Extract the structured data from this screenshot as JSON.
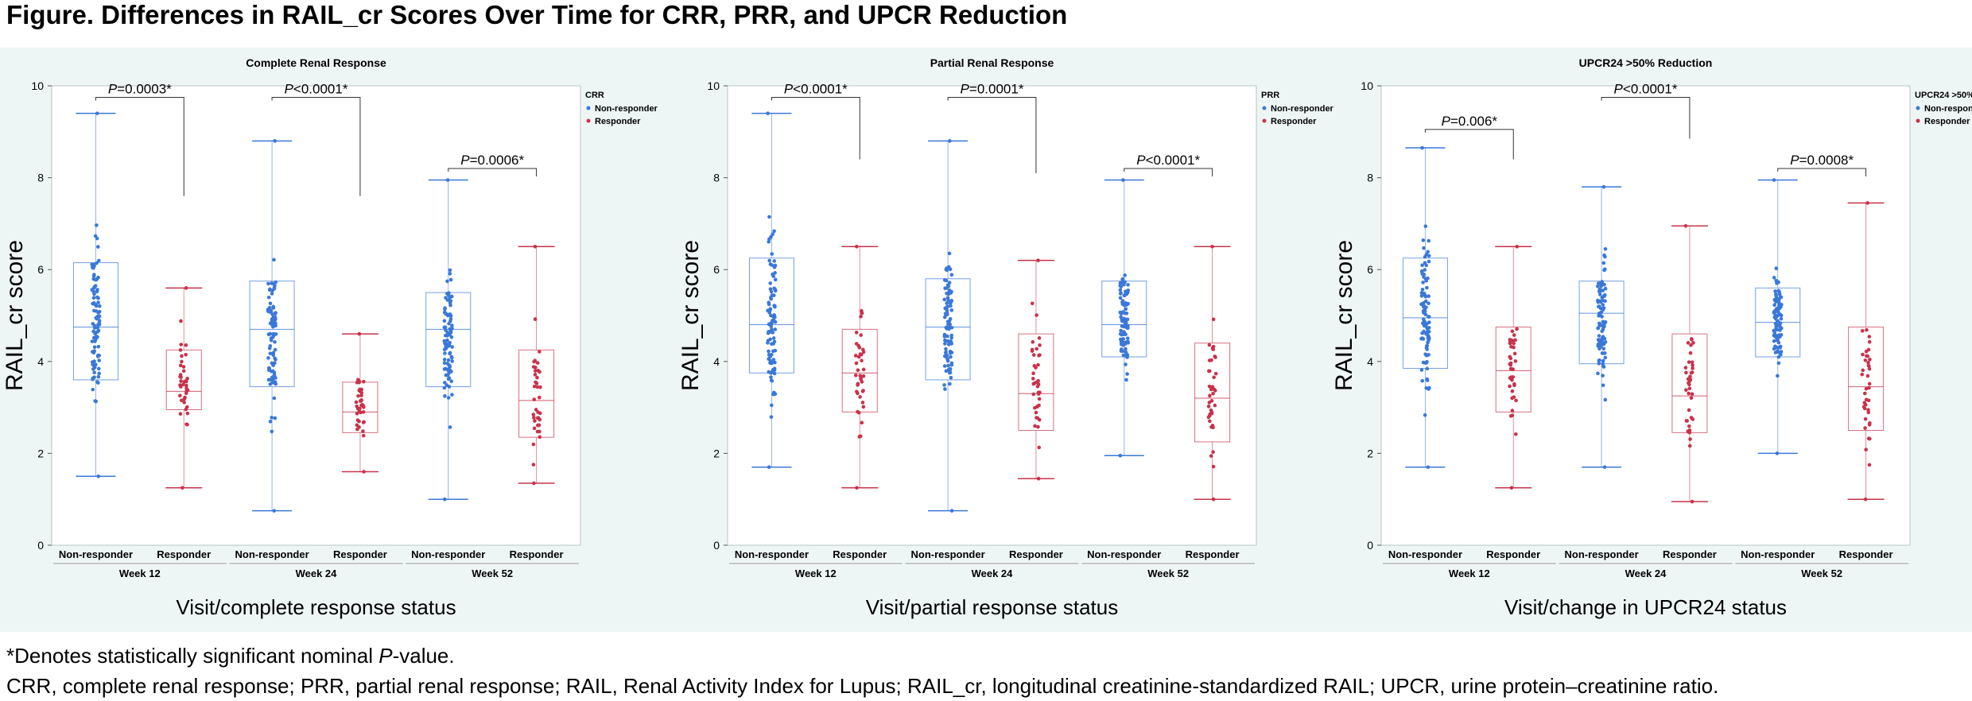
{
  "figure_title": "Figure. Differences in RAIL_cr Scores Over Time for CRR, PRR, and UPCR Reduction",
  "footnote_star": "*",
  "footnote_denotes": "Denotes statistically significant nominal ",
  "footnote_p": "P",
  "footnote_value": "-value.",
  "footnote_abbrev": "CRR, complete renal response; PRR, partial renal response; RAIL, Renal Activity Index for Lupus; RAIL_cr, longitudinal creatinine-standardized RAIL; UPCR, urine protein–creatinine ratio.",
  "colors": {
    "non_responder": "#3a78d8",
    "responder": "#c8334a",
    "panel_bg": "#eef6f5"
  },
  "chart_data": [
    {
      "type": "box",
      "title": "Complete Renal Response",
      "ylabel": "RAIL_cr score",
      "xlabel": "Visit/complete response status",
      "ylim": [
        0,
        10
      ],
      "yticks": [
        0,
        2,
        4,
        6,
        8,
        10
      ],
      "grid": false,
      "legend": {
        "title": "CRR",
        "entries": [
          "Non-responder",
          "Responder"
        ],
        "placement": "right"
      },
      "visits": [
        "Week 12",
        "Week 24",
        "Week 52"
      ],
      "categories": [
        "Non-responder",
        "Responder"
      ],
      "boxes": [
        {
          "visit": "Week 12",
          "group": "Non-responder",
          "min": 1.5,
          "q1": 3.6,
          "median": 4.75,
          "q3": 6.15,
          "max": 9.4
        },
        {
          "visit": "Week 12",
          "group": "Responder",
          "min": 1.25,
          "q1": 2.95,
          "median": 3.35,
          "q3": 4.25,
          "max": 5.6
        },
        {
          "visit": "Week 24",
          "group": "Non-responder",
          "min": 0.75,
          "q1": 3.45,
          "median": 4.7,
          "q3": 5.75,
          "max": 8.8
        },
        {
          "visit": "Week 24",
          "group": "Responder",
          "min": 1.6,
          "q1": 2.45,
          "median": 2.9,
          "q3": 3.55,
          "max": 4.6
        },
        {
          "visit": "Week 52",
          "group": "Non-responder",
          "min": 1.0,
          "q1": 3.45,
          "median": 4.7,
          "q3": 5.5,
          "max": 7.95
        },
        {
          "visit": "Week 52",
          "group": "Responder",
          "min": 1.35,
          "q1": 2.35,
          "median": 3.15,
          "q3": 4.25,
          "max": 6.5
        }
      ],
      "annotations": [
        {
          "visit": "Week 12",
          "label": "P",
          "value": "=0.0003*",
          "y": 9.75
        },
        {
          "visit": "Week 24",
          "label": "P",
          "value": "<0.0001*",
          "y": 9.75
        },
        {
          "visit": "Week 52",
          "label": "P",
          "value": "=0.0006*",
          "y": 8.2
        }
      ]
    },
    {
      "type": "box",
      "title": "Partial Renal Response",
      "ylabel": "RAIL_cr score",
      "xlabel": "Visit/partial response status",
      "ylim": [
        0,
        10
      ],
      "yticks": [
        0,
        2,
        4,
        6,
        8,
        10
      ],
      "grid": false,
      "legend": {
        "title": "PRR",
        "entries": [
          "Non-responder",
          "Responder"
        ],
        "placement": "right"
      },
      "visits": [
        "Week 12",
        "Week 24",
        "Week 52"
      ],
      "categories": [
        "Non-responder",
        "Responder"
      ],
      "boxes": [
        {
          "visit": "Week 12",
          "group": "Non-responder",
          "min": 1.7,
          "q1": 3.75,
          "median": 4.8,
          "q3": 6.25,
          "max": 9.4
        },
        {
          "visit": "Week 12",
          "group": "Responder",
          "min": 1.25,
          "q1": 2.9,
          "median": 3.75,
          "q3": 4.7,
          "max": 6.5
        },
        {
          "visit": "Week 24",
          "group": "Non-responder",
          "min": 0.75,
          "q1": 3.6,
          "median": 4.75,
          "q3": 5.8,
          "max": 8.8
        },
        {
          "visit": "Week 24",
          "group": "Responder",
          "min": 1.45,
          "q1": 2.5,
          "median": 3.3,
          "q3": 4.6,
          "max": 6.2
        },
        {
          "visit": "Week 52",
          "group": "Non-responder",
          "min": 1.95,
          "q1": 4.1,
          "median": 4.8,
          "q3": 5.75,
          "max": 7.95
        },
        {
          "visit": "Week 52",
          "group": "Responder",
          "min": 1.0,
          "q1": 2.25,
          "median": 3.2,
          "q3": 4.4,
          "max": 6.5
        }
      ],
      "annotations": [
        {
          "visit": "Week 12",
          "label": "P",
          "value": "<0.0001*",
          "y": 9.75
        },
        {
          "visit": "Week 24",
          "label": "P",
          "value": "=0.0001*",
          "y": 9.75
        },
        {
          "visit": "Week 52",
          "label": "P",
          "value": "<0.0001*",
          "y": 8.2
        }
      ]
    },
    {
      "type": "box",
      "title": "UPCR24 >50% Reduction",
      "ylabel": "RAIL_cr score",
      "xlabel": "Visit/change in UPCR24 status",
      "ylim": [
        0,
        10
      ],
      "yticks": [
        0,
        2,
        4,
        6,
        8,
        10
      ],
      "grid": false,
      "legend": {
        "title": "UPCR24 >50%",
        "entries": [
          "Non-responder",
          "Responder"
        ],
        "placement": "right"
      },
      "visits": [
        "Week 12",
        "Week 24",
        "Week 52"
      ],
      "categories": [
        "Non-responder",
        "Responder"
      ],
      "boxes": [
        {
          "visit": "Week 12",
          "group": "Non-responder",
          "min": 1.7,
          "q1": 3.85,
          "median": 4.95,
          "q3": 6.25,
          "max": 8.65
        },
        {
          "visit": "Week 12",
          "group": "Responder",
          "min": 1.25,
          "q1": 2.9,
          "median": 3.8,
          "q3": 4.75,
          "max": 6.5
        },
        {
          "visit": "Week 24",
          "group": "Non-responder",
          "min": 1.7,
          "q1": 3.95,
          "median": 5.05,
          "q3": 5.75,
          "max": 7.8
        },
        {
          "visit": "Week 24",
          "group": "Responder",
          "min": 0.95,
          "q1": 2.45,
          "median": 3.25,
          "q3": 4.6,
          "max": 6.95
        },
        {
          "visit": "Week 52",
          "group": "Non-responder",
          "min": 2.0,
          "q1": 4.1,
          "median": 4.85,
          "q3": 5.6,
          "max": 7.95
        },
        {
          "visit": "Week 52",
          "group": "Responder",
          "min": 1.0,
          "q1": 2.5,
          "median": 3.45,
          "q3": 4.75,
          "max": 7.45
        }
      ],
      "annotations": [
        {
          "visit": "Week 12",
          "label": "P",
          "value": "=0.006*",
          "y": 9.05
        },
        {
          "visit": "Week 24",
          "label": "P",
          "value": "<0.0001*",
          "y": 9.75
        },
        {
          "visit": "Week 52",
          "label": "P",
          "value": "=0.0008*",
          "y": 8.2
        }
      ]
    }
  ]
}
